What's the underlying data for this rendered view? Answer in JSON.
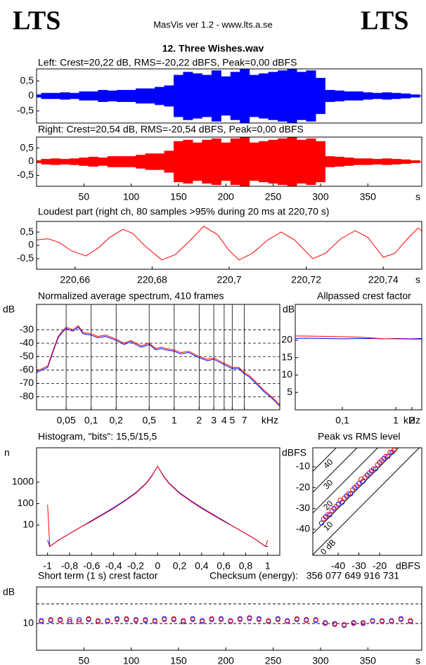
{
  "header": {
    "logo_left": "LTS",
    "logo_right": "LTS",
    "app": "MasVis ver 1.2 - www.lts.a.se",
    "file": "12. Three Wishes.wav"
  },
  "chart_data": [
    {
      "type": "area",
      "title": "Left: Crest=20,22 dB, RMS=-20,22 dBFS, Peak=0,00 dBFS",
      "color": "#0000ff",
      "xlim": [
        0,
        407
      ],
      "ylim": [
        -0.9,
        0.9
      ],
      "yticks": [
        {
          "value": 0.5,
          "label": "0,5"
        },
        0,
        {
          "value": -0.5,
          "label": "-0,5"
        }
      ],
      "x": [
        0,
        10,
        20,
        30,
        40,
        50,
        60,
        70,
        80,
        90,
        100,
        110,
        120,
        130,
        140,
        150,
        160,
        170,
        180,
        190,
        200,
        210,
        220,
        230,
        240,
        250,
        260,
        270,
        280,
        290,
        300,
        310,
        320,
        330,
        340,
        350,
        360,
        370,
        380,
        390,
        400
      ],
      "values": [
        0.05,
        0.1,
        0.1,
        0.12,
        0.1,
        0.15,
        0.15,
        0.2,
        0.18,
        0.2,
        0.2,
        0.25,
        0.25,
        0.3,
        0.35,
        0.7,
        0.8,
        0.75,
        0.7,
        0.85,
        0.65,
        0.8,
        0.9,
        0.7,
        0.75,
        0.8,
        0.85,
        0.9,
        0.8,
        0.85,
        0.6,
        0.2,
        0.18,
        0.15,
        0.15,
        0.12,
        0.1,
        0.12,
        0.1,
        0.08,
        0.05
      ]
    },
    {
      "type": "area",
      "title": "Right: Crest=20,54 dB, RMS=-20,54 dBFS, Peak=0,00 dBFS",
      "color": "#ff0000",
      "xlim": [
        0,
        407
      ],
      "ylim": [
        -0.9,
        0.9
      ],
      "xlabel": "s",
      "xticks": [
        50,
        100,
        150,
        200,
        250,
        300,
        350
      ],
      "yticks": [
        {
          "value": 0.5,
          "label": "0,5"
        },
        0,
        {
          "value": -0.5,
          "label": "-0,5"
        }
      ],
      "x": [
        0,
        10,
        20,
        30,
        40,
        50,
        60,
        70,
        80,
        90,
        100,
        110,
        120,
        130,
        140,
        150,
        160,
        170,
        180,
        190,
        200,
        210,
        220,
        230,
        240,
        250,
        260,
        270,
        280,
        290,
        300,
        310,
        320,
        330,
        340,
        350,
        360,
        370,
        380,
        390,
        400
      ],
      "values": [
        0.05,
        0.1,
        0.12,
        0.1,
        0.12,
        0.15,
        0.18,
        0.15,
        0.2,
        0.2,
        0.2,
        0.25,
        0.3,
        0.3,
        0.4,
        0.75,
        0.8,
        0.7,
        0.8,
        0.85,
        0.7,
        0.85,
        0.95,
        0.7,
        0.75,
        0.8,
        0.85,
        0.9,
        0.8,
        0.85,
        0.75,
        0.2,
        0.18,
        0.15,
        0.12,
        0.12,
        0.1,
        0.12,
        0.1,
        0.08,
        0.05
      ]
    },
    {
      "type": "line",
      "title": "Loudest part (right ch, 80 samples >95% during 20 ms at 220,70 s)",
      "xlim": [
        220.65,
        220.75
      ],
      "ylim": [
        -0.9,
        0.9
      ],
      "xlabel": "s",
      "xticks": [
        {
          "value": 220.66,
          "label": "220,66"
        },
        {
          "value": 220.68,
          "label": "220,68"
        },
        {
          "value": 220.7,
          "label": "220,7"
        },
        {
          "value": 220.72,
          "label": "220,72"
        },
        {
          "value": 220.74,
          "label": "220,74"
        }
      ],
      "yticks": [
        {
          "value": 0.5,
          "label": "0,5"
        },
        0,
        {
          "value": -0.5,
          "label": "-0,5"
        }
      ],
      "x": [
        220.65,
        220.653,
        220.656,
        220.659,
        220.6628,
        220.666,
        220.669,
        220.6724,
        220.675,
        220.678,
        220.6825,
        220.686,
        220.69,
        220.6934,
        220.697,
        220.7,
        220.7026,
        220.706,
        220.71,
        220.7135,
        220.717,
        220.7217,
        220.725,
        220.729,
        220.7327,
        220.736,
        220.74,
        220.743,
        220.746,
        220.749,
        220.75
      ],
      "series": [
        {
          "color": "#ff0000",
          "values": [
            0.2,
            0.25,
            0.1,
            -0.2,
            -0.4,
            -0.1,
            0.3,
            0.6,
            0.45,
            0.0,
            -0.55,
            -0.35,
            0.2,
            0.72,
            0.4,
            -0.2,
            -0.55,
            -0.3,
            0.2,
            0.5,
            0.2,
            -0.5,
            -0.3,
            0.25,
            0.55,
            0.3,
            -0.45,
            -0.3,
            0.2,
            0.65,
            0.55
          ]
        }
      ]
    },
    {
      "type": "line",
      "title": "Normalized average spectrum, 410 frames",
      "ylabel": "dB",
      "xlabel": "kHz",
      "xlog": true,
      "grid": true,
      "xlim": [
        0.022,
        18.7
      ],
      "ylim": [
        -89.7,
        -11.1
      ],
      "xticks": [
        {
          "value": 0.05,
          "label": "0,05"
        },
        {
          "value": 0.1,
          "label": "0,1"
        },
        {
          "value": 0.2,
          "label": "0,2"
        },
        {
          "value": 0.5,
          "label": "0,5"
        },
        1,
        2,
        3,
        4,
        5,
        7
      ],
      "yticks": [
        -30,
        -40,
        -50,
        -60,
        -70,
        -80
      ],
      "x": [
        0.022,
        0.03,
        0.035,
        0.04,
        0.045,
        0.05,
        0.06,
        0.07,
        0.08,
        0.1,
        0.12,
        0.15,
        0.2,
        0.25,
        0.3,
        0.4,
        0.5,
        0.6,
        0.7,
        0.8,
        1,
        1.2,
        1.5,
        2,
        2.5,
        3,
        4,
        5,
        6,
        7,
        8,
        10,
        12,
        15,
        18.7
      ],
      "series": [
        {
          "color": "#0000ff",
          "values": [
            -62,
            -58,
            -46,
            -36,
            -32,
            -29,
            -31,
            -28,
            -33,
            -34,
            -36,
            -35,
            -38,
            -41,
            -39,
            -43,
            -41,
            -45,
            -44,
            -45,
            -46,
            -48,
            -47,
            -51,
            -53,
            -52,
            -56,
            -59,
            -59,
            -63,
            -65,
            -71,
            -76,
            -81,
            -87
          ]
        },
        {
          "color": "#ff0000",
          "values": [
            -61,
            -57,
            -45,
            -35,
            -31,
            -28,
            -30,
            -27,
            -32,
            -33,
            -35,
            -34,
            -37,
            -40,
            -38,
            -42,
            -40,
            -44,
            -43,
            -44,
            -45,
            -47,
            -46,
            -50,
            -52,
            -51,
            -55,
            -58,
            -58,
            -62,
            -64,
            -70,
            -75,
            -80,
            -86
          ]
        }
      ]
    },
    {
      "type": "line",
      "title": "Allpassed crest factor",
      "ylabel": "dB",
      "xlabel": "kHz",
      "xlog": true,
      "xlim": [
        0.0131,
        3.07
      ],
      "ylim": [
        0,
        30.3
      ],
      "xticks": [
        {
          "value": 0.1,
          "label": "0,1"
        },
        1,
        2
      ],
      "yticks": [
        5,
        10,
        15,
        20
      ],
      "x": [
        0.0131,
        0.02,
        0.05,
        0.1,
        0.2,
        0.4,
        0.6,
        1,
        2,
        3.07
      ],
      "series": [
        {
          "color": "#0000ff",
          "values": [
            20.5,
            20.6,
            20.5,
            20.4,
            20.5,
            20.5,
            20.4,
            20.5,
            20.4,
            20.5
          ]
        },
        {
          "color": "#ff0000",
          "values": [
            21.2,
            21.2,
            21.1,
            21,
            20.9,
            20.6,
            20.4,
            20.4,
            20.3,
            20.3
          ]
        }
      ]
    },
    {
      "type": "line",
      "title": "Histogram, \"bits\": 15,5/15,5",
      "ylabel": "n",
      "ylog": true,
      "xlim": [
        -1.1,
        1.11
      ],
      "ylim": [
        0.39,
        40000
      ],
      "xticks": [
        -1,
        {
          "value": -0.8,
          "label": "-0,8"
        },
        {
          "value": -0.6,
          "label": "-0,6"
        },
        {
          "value": -0.4,
          "label": "-0,4"
        },
        {
          "value": -0.2,
          "label": "-0,2"
        },
        0,
        {
          "value": 0.2,
          "label": "0,2"
        },
        {
          "value": 0.4,
          "label": "0,4"
        },
        {
          "value": 0.6,
          "label": "0,6"
        },
        {
          "value": 0.8,
          "label": "0,8"
        },
        1
      ],
      "yticks": [
        10,
        100,
        1000
      ],
      "x": [
        -1,
        -0.98,
        -0.9,
        -0.8,
        -0.7,
        -0.6,
        -0.5,
        -0.4,
        -0.3,
        -0.2,
        -0.1,
        -0.05,
        0,
        0.05,
        0.1,
        0.2,
        0.3,
        0.4,
        0.5,
        0.6,
        0.7,
        0.8,
        0.9,
        0.98,
        1
      ],
      "series": [
        {
          "color": "#0000ff",
          "values": [
            2,
            1,
            2,
            4,
            8,
            16,
            32,
            65,
            140,
            320,
            950,
            2100,
            5500,
            2100,
            950,
            320,
            140,
            65,
            32,
            16,
            8,
            4,
            2,
            1,
            1
          ]
        },
        {
          "color": "#ff0000",
          "values": [
            90,
            1,
            2,
            4,
            8,
            15,
            30,
            60,
            130,
            300,
            900,
            2000,
            5500,
            2000,
            900,
            300,
            130,
            60,
            30,
            15,
            8,
            4,
            2,
            1,
            2
          ]
        }
      ]
    },
    {
      "type": "scatter",
      "title": "Peak vs RMS level",
      "ylabel": "dBFS",
      "xlabel": "dBFS",
      "xlim": [
        -52.2,
        0.3
      ],
      "ylim": [
        -52.5,
        -0.9
      ],
      "xticks": [
        -40,
        -30,
        -20
      ],
      "yticks": [
        -10,
        -20,
        -30,
        -40
      ],
      "crest_lines": [
        40,
        30,
        20,
        10,
        {
          "value": 0,
          "label": "0 dB"
        }
      ],
      "series": [
        {
          "color": "#0000ff",
          "x": [
            -48,
            -46,
            -44,
            -42,
            -40,
            -38,
            -36,
            -34,
            -32,
            -30,
            -28,
            -26,
            -24,
            -22,
            -20,
            -18,
            -16,
            -14
          ],
          "values": [
            -37,
            -34,
            -33,
            -30,
            -28,
            -27,
            -24,
            -23,
            -20,
            -18,
            -17,
            -14,
            -12,
            -11,
            -8,
            -6,
            -5,
            -3
          ]
        },
        {
          "color": "#ff0000",
          "x": [
            -47,
            -45,
            -43,
            -41,
            -39,
            -37,
            -35,
            -33,
            -31,
            -29,
            -27,
            -25,
            -23,
            -21,
            -19,
            -17,
            -15,
            -13
          ],
          "values": [
            -35,
            -33,
            -31,
            -29,
            -26,
            -25,
            -23,
            -21,
            -19,
            -16,
            -15,
            -13,
            -11,
            -9,
            -7,
            -5,
            -3,
            -2
          ]
        }
      ]
    },
    {
      "type": "scatter",
      "title": "Short term (1 s) crest factor",
      "checksum": "Checksum (energy):   356 077 649 916 731",
      "ylabel": "dB",
      "xlabel": "s",
      "xlim": [
        0,
        407
      ],
      "ylim": [
        -3.6,
        28.6
      ],
      "xticks": [
        50,
        100,
        150,
        200,
        250,
        300,
        350
      ],
      "yticks": [
        10
      ],
      "reference_lines": [
        10,
        20
      ],
      "x": [
        5,
        15,
        25,
        35,
        45,
        55,
        65,
        75,
        85,
        95,
        105,
        115,
        125,
        135,
        145,
        155,
        165,
        175,
        185,
        195,
        205,
        215,
        225,
        235,
        245,
        255,
        265,
        275,
        285,
        295,
        305,
        315,
        325,
        335,
        345,
        355,
        365,
        375,
        385,
        395
      ],
      "series": [
        {
          "color": "#0000ff",
          "values": [
            11.5,
            11.5,
            12,
            11,
            12,
            12,
            11,
            11.5,
            12.5,
            12,
            12,
            11.5,
            11.5,
            12.5,
            12,
            11,
            12.5,
            11.5,
            12,
            12.5,
            11,
            12.5,
            12.5,
            12.5,
            11,
            12.5,
            11.5,
            12,
            12,
            11.5,
            10.5,
            10,
            9,
            10.5,
            10,
            11.5,
            11,
            11.5,
            12.5,
            11
          ]
        },
        {
          "color": "#ff0000",
          "values": [
            11,
            12,
            11.5,
            12,
            11,
            12.5,
            11.5,
            11,
            12,
            12.5,
            11.5,
            12,
            11,
            12,
            12.5,
            11.5,
            12,
            11,
            12.5,
            12,
            11.5,
            12,
            13,
            12,
            11.5,
            12,
            11,
            12.5,
            11.5,
            12,
            10,
            9.5,
            9.5,
            10,
            10.5,
            11,
            11.5,
            11,
            12,
            11.5
          ]
        }
      ]
    }
  ]
}
